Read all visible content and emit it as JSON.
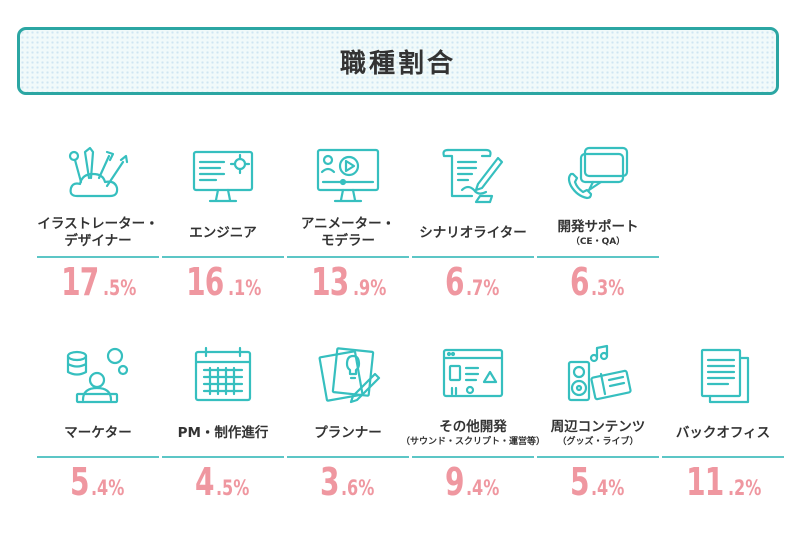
{
  "title": "職種割合",
  "colors": {
    "accent": "#2ba6a3",
    "icon": "#36bfbf",
    "percent": "#ef97a0"
  },
  "chart_data": {
    "type": "table",
    "title": "職種割合",
    "unit": "%",
    "items": [
      {
        "label": "イラストレーター・",
        "label2": "デザイナー",
        "sub": "",
        "whole": "17",
        "frac": ".5%",
        "value": 17.5,
        "icon": "paint-cloud-icon"
      },
      {
        "label": "エンジニア",
        "label2": "",
        "sub": "",
        "whole": "16",
        "frac": ".1%",
        "value": 16.1,
        "icon": "monitor-gear-icon"
      },
      {
        "label": "アニメーター・",
        "label2": "モデラー",
        "sub": "",
        "whole": "13",
        "frac": ".9%",
        "value": 13.9,
        "icon": "monitor-video-icon"
      },
      {
        "label": "シナリオライター",
        "label2": "",
        "sub": "",
        "whole": "6",
        "frac": ".7%",
        "value": 6.7,
        "icon": "scroll-pen-icon"
      },
      {
        "label": "開発サポート",
        "label2": "",
        "sub": "（CE・QA）",
        "whole": "6",
        "frac": ".3%",
        "value": 6.3,
        "icon": "chat-phone-icon"
      },
      {
        "label": "マーケター",
        "label2": "",
        "sub": "",
        "whole": "5",
        "frac": ".4%",
        "value": 5.4,
        "icon": "data-person-icon"
      },
      {
        "label": "PM・制作進行",
        "label2": "",
        "sub": "",
        "whole": "4",
        "frac": ".5%",
        "value": 4.5,
        "icon": "calendar-icon"
      },
      {
        "label": "プランナー",
        "label2": "",
        "sub": "",
        "whole": "3",
        "frac": ".6%",
        "value": 3.6,
        "icon": "idea-papers-icon"
      },
      {
        "label": "その他開発",
        "label2": "",
        "sub": "（サウンド・スクリプト・運営等）",
        "whole": "9",
        "frac": ".4%",
        "value": 9.4,
        "icon": "browser-media-icon"
      },
      {
        "label": "周辺コンテンツ",
        "label2": "",
        "sub": "（グッズ・ライブ）",
        "whole": "5",
        "frac": ".4%",
        "value": 5.4,
        "icon": "speaker-ticket-icon"
      },
      {
        "label": "バックオフィス",
        "label2": "",
        "sub": "",
        "whole": "11",
        "frac": ".2%",
        "value": 11.2,
        "icon": "documents-icon"
      }
    ]
  }
}
